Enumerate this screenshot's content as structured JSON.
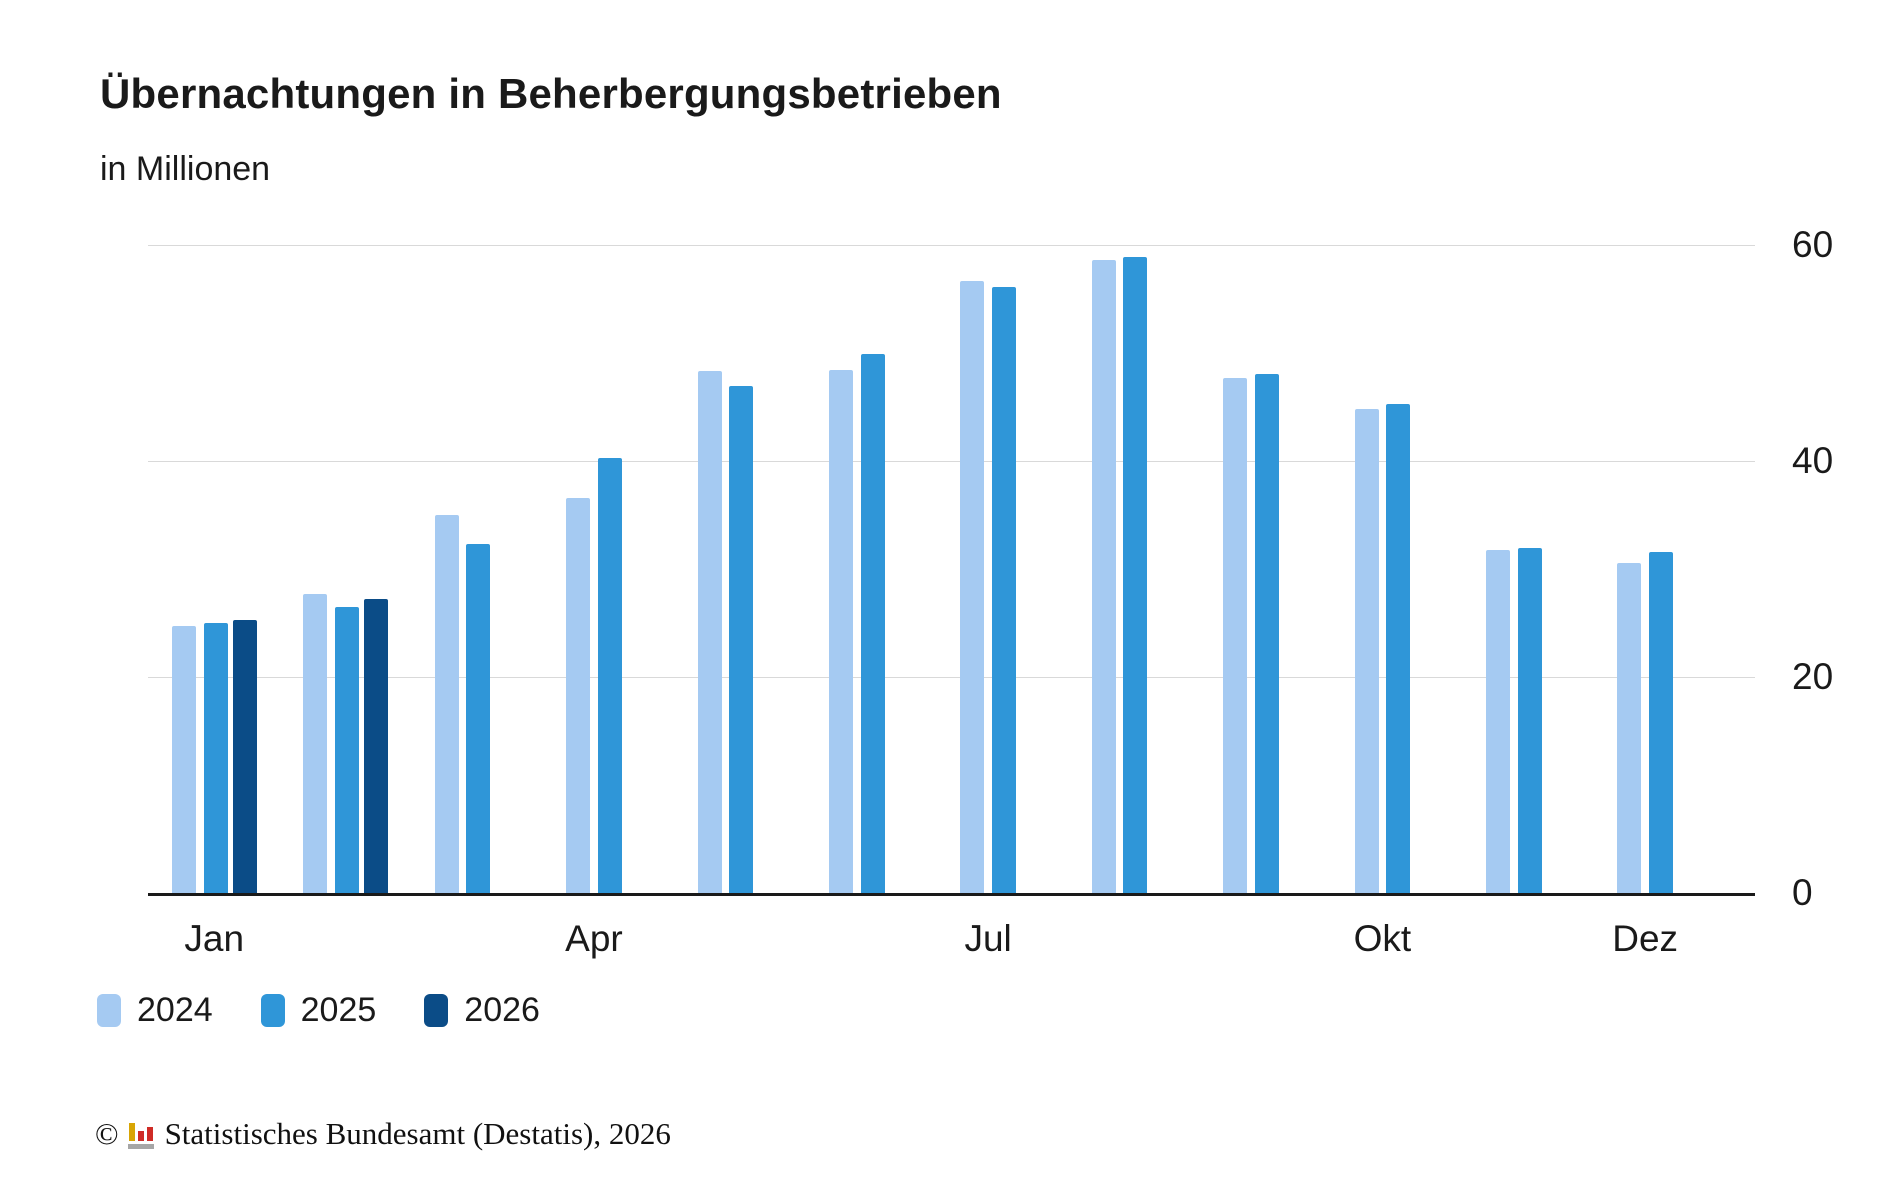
{
  "header": {
    "title": "Übernachtungen in Beherbergungsbetrieben",
    "subtitle": "in Millionen"
  },
  "chart_data": {
    "type": "bar",
    "title": "Übernachtungen in Beherbergungsbetrieben",
    "unit_label": "in Millionen",
    "categories": [
      "Jan",
      "Feb",
      "Mär",
      "Apr",
      "Mai",
      "Jun",
      "Jul",
      "Aug",
      "Sep",
      "Okt",
      "Nov",
      "Dez"
    ],
    "series": [
      {
        "name": "2024",
        "color": "#a5caf2",
        "values": [
          24.7,
          27.7,
          35.0,
          36.6,
          48.3,
          48.4,
          56.7,
          58.6,
          47.7,
          44.8,
          31.8,
          30.6
        ]
      },
      {
        "name": "2025",
        "color": "#2f96d8",
        "values": [
          25.0,
          26.5,
          32.3,
          40.3,
          46.9,
          49.9,
          56.1,
          58.9,
          48.1,
          45.3,
          31.9,
          31.6
        ]
      },
      {
        "name": "2026",
        "color": "#0b4c87",
        "values": [
          25.3,
          27.2,
          null,
          null,
          null,
          null,
          null,
          null,
          null,
          null,
          null,
          null
        ]
      }
    ],
    "ylim": [
      0,
      60
    ],
    "yticks": [
      0,
      20,
      40,
      60
    ],
    "y_label_side": "right",
    "grid": true,
    "legend_position": "bottom",
    "visible_x_ticks": [
      {
        "label": "Jan",
        "month_index": 0
      },
      {
        "label": "Apr",
        "month_index": 3
      },
      {
        "label": "Jul",
        "month_index": 6
      },
      {
        "label": "Okt",
        "month_index": 9
      },
      {
        "label": "Dez",
        "month_index": 11
      }
    ]
  },
  "footer": {
    "copyright_symbol": "©",
    "source_text": "Statistisches Bundesamt (Destatis), 2026"
  }
}
